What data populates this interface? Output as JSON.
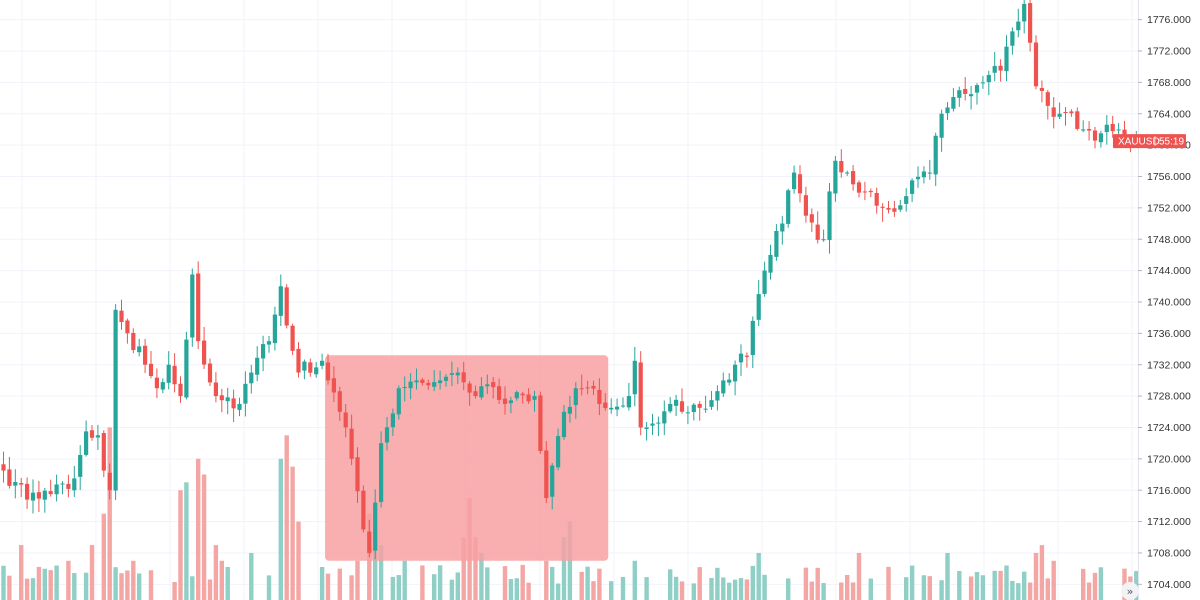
{
  "chart_data": {
    "type": "candlestick",
    "symbol": "XAUUSD",
    "countdown": "55:19",
    "last_price": 1760.5,
    "ylim": [
      1702.0,
      1778.5
    ],
    "y_ticks": [
      1704.0,
      1708.0,
      1712.0,
      1716.0,
      1720.0,
      1724.0,
      1728.0,
      1732.0,
      1736.0,
      1740.0,
      1744.0,
      1748.0,
      1752.0,
      1756.0,
      1760.0,
      1764.0,
      1768.0,
      1772.0,
      1776.0
    ],
    "y_tick_labels": [
      "1704.000",
      "1708.000",
      "1712.000",
      "1716.000",
      "1720.000",
      "1724.000",
      "1728.000",
      "1732.000",
      "1736.000",
      "1740.000",
      "1744.000",
      "1748.000",
      "1752.000",
      "1756.000",
      "1760.000",
      "1764.000",
      "1768.000",
      "1772.000",
      "1776.000"
    ],
    "grid": true,
    "colors": {
      "up": "#26a69a",
      "down": "#ef5350",
      "up_volume": "#8fcfc6",
      "down_volume": "#f3a6a4",
      "zone": "#f8a0a2",
      "grid": "#f0f3fa",
      "price_tag": "#ef5350"
    },
    "zone": {
      "bar_start": 54.5,
      "bar_end": 102.5,
      "price_low": 1707.0,
      "price_high": 1733.2
    },
    "key_points": [
      [
        0,
        1718.5
      ],
      [
        4,
        1714.8
      ],
      [
        8,
        1715.5
      ],
      [
        12,
        1717.5
      ],
      [
        14,
        1723.5
      ],
      [
        16,
        1723.0
      ],
      [
        18,
        1716.0
      ],
      [
        19,
        1739.0
      ],
      [
        21,
        1736.0
      ],
      [
        24,
        1732.0
      ],
      [
        26,
        1729.0
      ],
      [
        28,
        1732.0
      ],
      [
        30,
        1728.0
      ],
      [
        32,
        1743.5
      ],
      [
        33,
        1735.0
      ],
      [
        36,
        1728.0
      ],
      [
        40,
        1727.0
      ],
      [
        42,
        1731.0
      ],
      [
        45,
        1735.0
      ],
      [
        47,
        1742.0
      ],
      [
        48,
        1737.0
      ],
      [
        50,
        1731.0
      ],
      [
        54,
        1732.5
      ],
      [
        55,
        1730.0
      ],
      [
        57,
        1726.0
      ],
      [
        59,
        1720.0
      ],
      [
        61,
        1711.0
      ],
      [
        62,
        1708.0
      ],
      [
        64,
        1722.0
      ],
      [
        67,
        1729.0
      ],
      [
        70,
        1730.0
      ],
      [
        74,
        1730.0
      ],
      [
        77,
        1731.0
      ],
      [
        80,
        1728.0
      ],
      [
        82,
        1729.5
      ],
      [
        85,
        1727.0
      ],
      [
        87,
        1728.5
      ],
      [
        90,
        1728.0
      ],
      [
        91,
        1721.0
      ],
      [
        92,
        1715.0
      ],
      [
        95,
        1726.0
      ],
      [
        97,
        1729.0
      ],
      [
        99,
        1729.0
      ],
      [
        101,
        1727.0
      ],
      [
        103,
        1726.5
      ],
      [
        106,
        1728.0
      ],
      [
        107,
        1732.5
      ],
      [
        108,
        1724.0
      ],
      [
        110,
        1724.5
      ],
      [
        113,
        1727.0
      ],
      [
        115,
        1726.0
      ],
      [
        118,
        1726.5
      ],
      [
        122,
        1730.0
      ],
      [
        124,
        1732.0
      ],
      [
        126,
        1733.0
      ],
      [
        128,
        1741.0
      ],
      [
        130,
        1746.0
      ],
      [
        132,
        1750.0
      ],
      [
        134,
        1756.5
      ],
      [
        136,
        1751.0
      ],
      [
        139,
        1748.0
      ],
      [
        141,
        1758.0
      ],
      [
        144,
        1755.0
      ],
      [
        147,
        1754.0
      ],
      [
        149,
        1752.0
      ],
      [
        151,
        1751.5
      ],
      [
        154,
        1755.5
      ],
      [
        157,
        1756.5
      ],
      [
        159,
        1764.0
      ],
      [
        162,
        1767.0
      ],
      [
        164,
        1766.5
      ],
      [
        166,
        1768.0
      ],
      [
        169,
        1769.5
      ],
      [
        171,
        1774.5
      ],
      [
        173,
        1778.0
      ],
      [
        175,
        1767.5
      ],
      [
        177,
        1765.0
      ],
      [
        179,
        1764.0
      ],
      [
        183,
        1762.0
      ],
      [
        186,
        1761.5
      ],
      [
        189,
        1762.0
      ],
      [
        191,
        1760.0
      ],
      [
        192,
        1760.5
      ]
    ],
    "volume_highlights": [
      [
        3,
        5
      ],
      [
        11,
        3
      ],
      [
        15,
        5
      ],
      [
        17,
        9
      ],
      [
        18,
        20
      ],
      [
        22,
        3
      ],
      [
        30,
        12
      ],
      [
        31,
        13
      ],
      [
        33,
        16
      ],
      [
        34,
        14
      ],
      [
        36,
        5
      ],
      [
        37,
        3
      ],
      [
        42,
        4
      ],
      [
        47,
        16
      ],
      [
        48,
        19
      ],
      [
        49,
        15
      ],
      [
        50,
        8
      ],
      [
        57,
        2
      ],
      [
        60,
        3
      ],
      [
        62,
        9
      ],
      [
        63,
        7
      ],
      [
        64,
        5
      ],
      [
        68,
        3
      ],
      [
        78,
        6
      ],
      [
        79,
        11
      ],
      [
        80,
        6
      ],
      [
        81,
        4
      ],
      [
        92,
        3
      ],
      [
        95,
        6
      ],
      [
        96,
        8
      ],
      [
        101,
        2
      ],
      [
        107,
        3
      ],
      [
        128,
        4
      ],
      [
        145,
        4
      ],
      [
        160,
        4
      ],
      [
        175,
        4
      ],
      [
        176,
        5
      ],
      [
        178,
        3
      ],
      [
        190,
        2
      ]
    ]
  }
}
